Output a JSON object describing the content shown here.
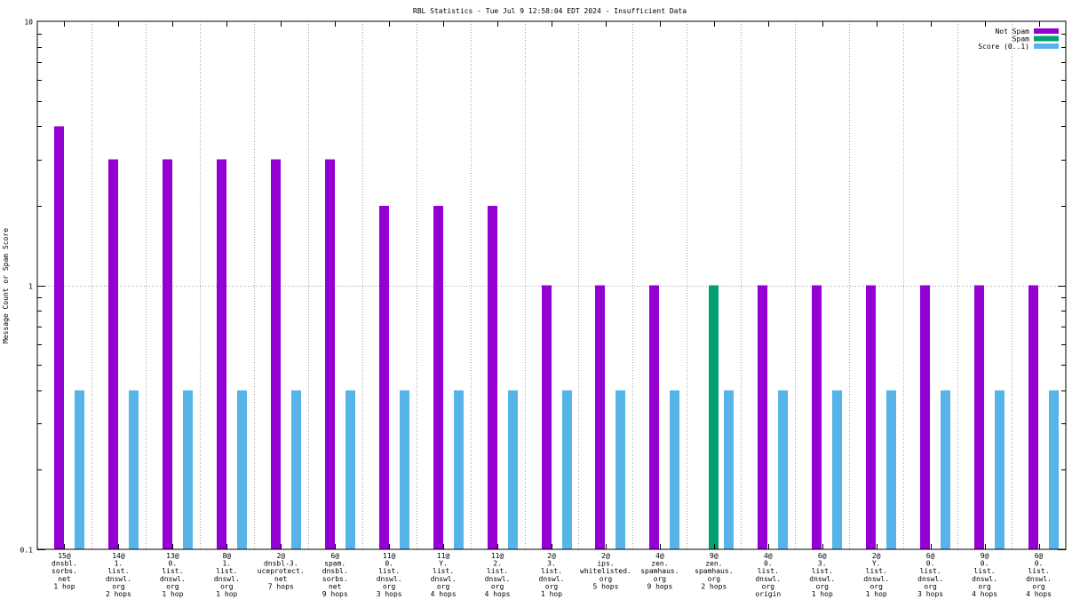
{
  "chart_data": {
    "type": "bar",
    "title": "RBL Statistics - Tue Jul  9 12:58:04 EDT 2024 - Insufficient Data",
    "ylabel": "Message Count or Spam Score",
    "xlabel": "",
    "y_scale": "log",
    "ylim": [
      0.1,
      10
    ],
    "y_ticks": [
      {
        "value": 0.1,
        "label": "0.1"
      },
      {
        "value": 1,
        "label": "1"
      },
      {
        "value": 10,
        "label": "10"
      }
    ],
    "grid": true,
    "legend_position": "top-right",
    "categories": [
      [
        "15@",
        "dnsbl.",
        "sorbs.",
        "net",
        "1 hop"
      ],
      [
        "14@",
        "1.",
        "list.",
        "dnswl.",
        "org",
        "2 hops"
      ],
      [
        "13@",
        "0.",
        "list.",
        "dnswl.",
        "org",
        "1 hop"
      ],
      [
        "8@",
        "1.",
        "list.",
        "dnswl.",
        "org",
        "1 hop"
      ],
      [
        "2@",
        "dnsbl-3.",
        "uceprotect.",
        "net",
        "7 hops"
      ],
      [
        "6@",
        "spam.",
        "dnsbl.",
        "sorbs.",
        "net",
        "9 hops"
      ],
      [
        "11@",
        "0.",
        "list.",
        "dnswl.",
        "org",
        "3 hops"
      ],
      [
        "11@",
        "Y.",
        "list.",
        "dnswl.",
        "org",
        "4 hops"
      ],
      [
        "11@",
        "2.",
        "list.",
        "dnswl.",
        "org",
        "4 hops"
      ],
      [
        "2@",
        "3.",
        "list.",
        "dnswl.",
        "org",
        "1 hop"
      ],
      [
        "2@",
        "ips.",
        "whitelisted.",
        "org",
        "5 hops"
      ],
      [
        "4@",
        "zen.",
        "spamhaus.",
        "org",
        "9 hops"
      ],
      [
        "9@",
        "zen.",
        "spamhaus.",
        "org",
        "2 hops"
      ],
      [
        "4@",
        "0.",
        "list.",
        "dnswl.",
        "org",
        "origin"
      ],
      [
        "6@",
        "3.",
        "list.",
        "dnswl.",
        "org",
        "1 hop"
      ],
      [
        "2@",
        "Y.",
        "list.",
        "dnswl.",
        "org",
        "1 hop"
      ],
      [
        "6@",
        "0.",
        "list.",
        "dnswl.",
        "org",
        "3 hops"
      ],
      [
        "9@",
        "0.",
        "list.",
        "dnswl.",
        "org",
        "4 hops"
      ],
      [
        "6@",
        "0.",
        "list.",
        "dnswl.",
        "org",
        "4 hops"
      ]
    ],
    "series": [
      {
        "name": "Not Spam",
        "color": "#9400d3",
        "values": [
          4,
          3,
          3,
          3,
          3,
          3,
          2,
          2,
          2,
          1,
          1,
          1,
          null,
          1,
          1,
          1,
          1,
          1,
          1
        ]
      },
      {
        "name": "Spam",
        "color": "#009e73",
        "values": [
          null,
          null,
          null,
          null,
          null,
          null,
          null,
          null,
          null,
          null,
          null,
          null,
          1,
          null,
          null,
          null,
          null,
          null,
          null
        ]
      },
      {
        "name": "Score (0..1)",
        "color": "#56b4e9",
        "values": [
          0.4,
          0.4,
          0.4,
          0.4,
          0.4,
          0.4,
          0.4,
          0.4,
          0.4,
          0.4,
          0.4,
          0.4,
          0.4,
          0.4,
          0.4,
          0.4,
          0.4,
          0.4,
          0.4
        ]
      }
    ]
  }
}
